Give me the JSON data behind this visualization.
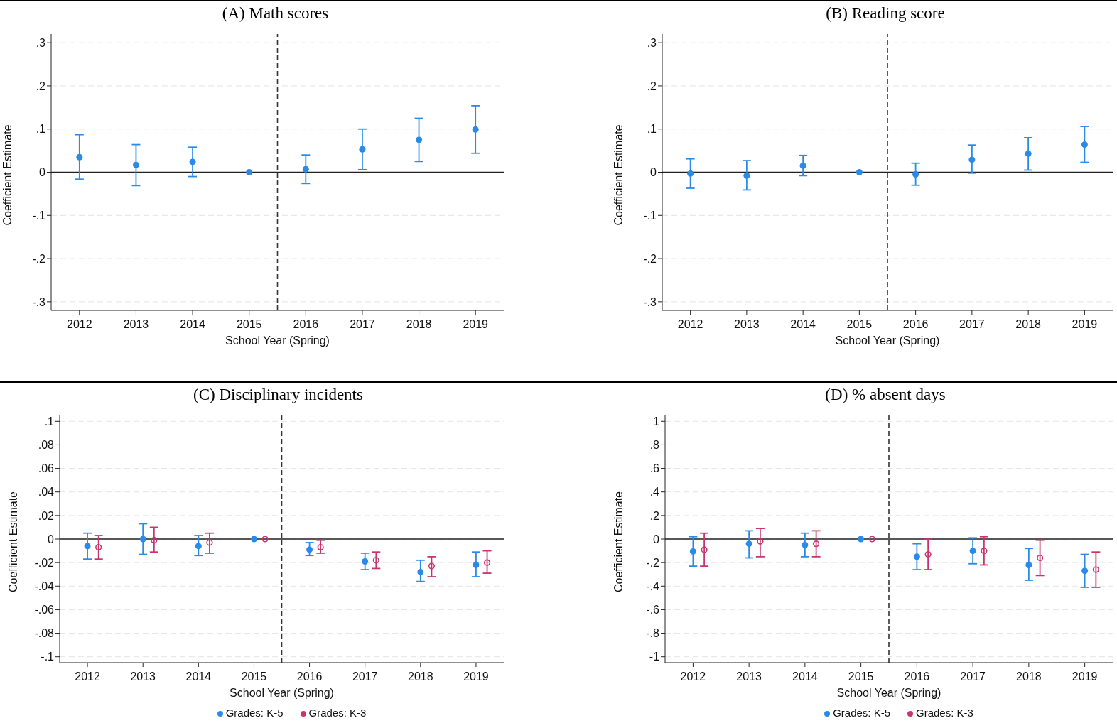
{
  "chart_data": [
    {
      "type": "scatter",
      "title": "(A) Math scores",
      "xlabel": "School Year (Spring)",
      "ylabel": "Coefficient Estimate",
      "x": [
        2012,
        2013,
        2014,
        2015,
        2016,
        2017,
        2018,
        2019
      ],
      "xlim": [
        2011.5,
        2019.5
      ],
      "xticks": [
        2012,
        2013,
        2014,
        2015,
        2016,
        2017,
        2018,
        2019
      ],
      "ylim": [
        -0.32,
        0.32
      ],
      "yticks": [
        {
          "value": -0.3,
          "label": "-.3"
        },
        {
          "value": -0.2,
          "label": "-.2"
        },
        {
          "value": -0.1,
          "label": "-.1"
        },
        0,
        {
          "value": 0.1,
          "label": ".1"
        },
        {
          "value": 0.2,
          "label": ".2"
        },
        {
          "value": 0.3,
          "label": ".3"
        }
      ],
      "grid": "y",
      "marker": "circle",
      "legend": false,
      "series": [
        {
          "color": "#2a8ae8",
          "values": [
            0.035,
            0.017,
            0.024,
            0,
            0.007,
            0.053,
            0.075,
            0.099
          ],
          "errors": [
            [
              -0.016,
              0.087
            ],
            [
              -0.031,
              0.064
            ],
            [
              -0.01,
              0.058
            ],
            null,
            [
              -0.026,
              0.04
            ],
            [
              0.006,
              0.1
            ],
            [
              0.025,
              0.125
            ],
            [
              0.044,
              0.154
            ]
          ]
        }
      ],
      "ref_lines": [
        {
          "axis": "x",
          "value": 2015.5,
          "line_style": "dashed",
          "color": "#333333"
        },
        {
          "axis": "y",
          "value": 0,
          "line_style": "solid",
          "color": "#222222"
        }
      ]
    },
    {
      "type": "scatter",
      "title": "(B) Reading score",
      "xlabel": "School Year (Spring)",
      "ylabel": "Coefficient Estimate",
      "x": [
        2012,
        2013,
        2014,
        2015,
        2016,
        2017,
        2018,
        2019
      ],
      "xlim": [
        2011.5,
        2019.5
      ],
      "xticks": [
        2012,
        2013,
        2014,
        2015,
        2016,
        2017,
        2018,
        2019
      ],
      "ylim": [
        -0.32,
        0.32
      ],
      "yticks": [
        {
          "value": -0.3,
          "label": "-.3"
        },
        {
          "value": -0.2,
          "label": "-.2"
        },
        {
          "value": -0.1,
          "label": "-.1"
        },
        0,
        {
          "value": 0.1,
          "label": ".1"
        },
        {
          "value": 0.2,
          "label": ".2"
        },
        {
          "value": 0.3,
          "label": ".3"
        }
      ],
      "grid": "y",
      "marker": "circle",
      "legend": false,
      "series": [
        {
          "color": "#2a8ae8",
          "values": [
            -0.003,
            -0.008,
            0.015,
            0,
            -0.005,
            0.029,
            0.043,
            0.064
          ],
          "errors": [
            [
              -0.037,
              0.031
            ],
            [
              -0.041,
              0.027
            ],
            [
              -0.008,
              0.039
            ],
            null,
            [
              -0.03,
              0.021
            ],
            [
              -0.002,
              0.063
            ],
            [
              0.005,
              0.08
            ],
            [
              0.023,
              0.106
            ]
          ]
        }
      ],
      "ref_lines": [
        {
          "axis": "x",
          "value": 2015.5,
          "line_style": "dashed",
          "color": "#333333"
        },
        {
          "axis": "y",
          "value": 0,
          "line_style": "solid",
          "color": "#222222"
        }
      ]
    },
    {
      "type": "scatter",
      "title": "(C) Disciplinary incidents",
      "xlabel": "School Year (Spring)",
      "ylabel": "Coefficient Estimate",
      "x": [
        2012,
        2013,
        2014,
        2015,
        2016,
        2017,
        2018,
        2019
      ],
      "xlim": [
        2011.5,
        2019.5
      ],
      "xticks": [
        2012,
        2013,
        2014,
        2015,
        2016,
        2017,
        2018,
        2019
      ],
      "ylim": [
        -0.105,
        0.105
      ],
      "yticks": [
        {
          "value": -0.1,
          "label": "-.1"
        },
        {
          "value": -0.08,
          "label": "-.08"
        },
        {
          "value": -0.06,
          "label": "-.06"
        },
        {
          "value": -0.04,
          "label": "-.04"
        },
        {
          "value": -0.02,
          "label": "-.02"
        },
        0,
        {
          "value": 0.02,
          "label": ".02"
        },
        {
          "value": 0.04,
          "label": ".04"
        },
        {
          "value": 0.06,
          "label": ".06"
        },
        {
          "value": 0.08,
          "label": ".08"
        },
        {
          "value": 0.1,
          "label": ".1"
        }
      ],
      "grid": "y",
      "marker": "circle",
      "legend": "bottom",
      "series": [
        {
          "name": "Grades: K-5",
          "color": "#2a8ae8",
          "values": [
            -0.006,
            0,
            -0.006,
            0,
            -0.009,
            -0.019,
            -0.028,
            -0.022
          ],
          "errors": [
            [
              -0.017,
              0.005
            ],
            [
              -0.013,
              0.013
            ],
            [
              -0.014,
              0.003
            ],
            null,
            [
              -0.014,
              -0.003
            ],
            [
              -0.026,
              -0.012
            ],
            [
              -0.036,
              -0.018
            ],
            [
              -0.032,
              -0.011
            ]
          ]
        },
        {
          "name": "Grades: K-3",
          "color": "#c8346e",
          "x": [
            2012.2,
            2013.2,
            2014.2,
            2015.2,
            2016.2,
            2017.2,
            2018.2,
            2019.2
          ],
          "values": [
            -0.007,
            -0.001,
            -0.003,
            0,
            -0.007,
            -0.018,
            -0.023,
            -0.02
          ],
          "errors": [
            [
              -0.017,
              0.003
            ],
            [
              -0.011,
              0.01
            ],
            [
              -0.012,
              0.005
            ],
            null,
            [
              -0.012,
              -0.001
            ],
            [
              -0.025,
              -0.011
            ],
            [
              -0.032,
              -0.015
            ],
            [
              -0.029,
              -0.01
            ]
          ]
        }
      ],
      "ref_lines": [
        {
          "axis": "x",
          "value": 2015.5,
          "line_style": "dashed",
          "color": "#333333"
        },
        {
          "axis": "y",
          "value": 0,
          "line_style": "solid",
          "color": "#222222"
        }
      ]
    },
    {
      "type": "scatter",
      "title": "(D) % absent days",
      "xlabel": "School Year (Spring)",
      "ylabel": "Coefficient Estimate",
      "x": [
        2012,
        2013,
        2014,
        2015,
        2016,
        2017,
        2018,
        2019
      ],
      "xlim": [
        2011.5,
        2019.5
      ],
      "xticks": [
        2012,
        2013,
        2014,
        2015,
        2016,
        2017,
        2018,
        2019
      ],
      "ylim": [
        -1.05,
        1.05
      ],
      "yticks": [
        -1,
        {
          "value": -0.8,
          "label": "-.8"
        },
        {
          "value": -0.6,
          "label": "-.6"
        },
        {
          "value": -0.4,
          "label": "-.4"
        },
        {
          "value": -0.2,
          "label": "-.2"
        },
        0,
        {
          "value": 0.2,
          "label": ".2"
        },
        {
          "value": 0.4,
          "label": ".4"
        },
        {
          "value": 0.6,
          "label": ".6"
        },
        {
          "value": 0.8,
          "label": ".8"
        },
        1
      ],
      "grid": "y",
      "marker": "circle",
      "legend": "bottom",
      "series": [
        {
          "name": "Grades: K-5",
          "color": "#2a8ae8",
          "values": [
            -0.105,
            -0.04,
            -0.05,
            0,
            -0.15,
            -0.1,
            -0.22,
            -0.27
          ],
          "errors": [
            [
              -0.23,
              0.02
            ],
            [
              -0.16,
              0.07
            ],
            [
              -0.15,
              0.05
            ],
            null,
            [
              -0.26,
              -0.04
            ],
            [
              -0.21,
              0.01
            ],
            [
              -0.35,
              -0.08
            ],
            [
              -0.41,
              -0.13
            ]
          ]
        },
        {
          "name": "Grades: K-3",
          "color": "#c8346e",
          "x": [
            2012.2,
            2013.2,
            2014.2,
            2015.2,
            2016.2,
            2017.2,
            2018.2,
            2019.2
          ],
          "values": [
            -0.09,
            -0.02,
            -0.04,
            0,
            -0.13,
            -0.1,
            -0.16,
            -0.26
          ],
          "errors": [
            [
              -0.23,
              0.05
            ],
            [
              -0.15,
              0.09
            ],
            [
              -0.15,
              0.07
            ],
            null,
            [
              -0.26,
              0
            ],
            [
              -0.22,
              0.02
            ],
            [
              -0.31,
              -0.01
            ],
            [
              -0.41,
              -0.11
            ]
          ]
        }
      ],
      "ref_lines": [
        {
          "axis": "x",
          "value": 2015.5,
          "line_style": "dashed",
          "color": "#333333"
        },
        {
          "axis": "y",
          "value": 0,
          "line_style": "solid",
          "color": "#222222"
        }
      ]
    }
  ]
}
